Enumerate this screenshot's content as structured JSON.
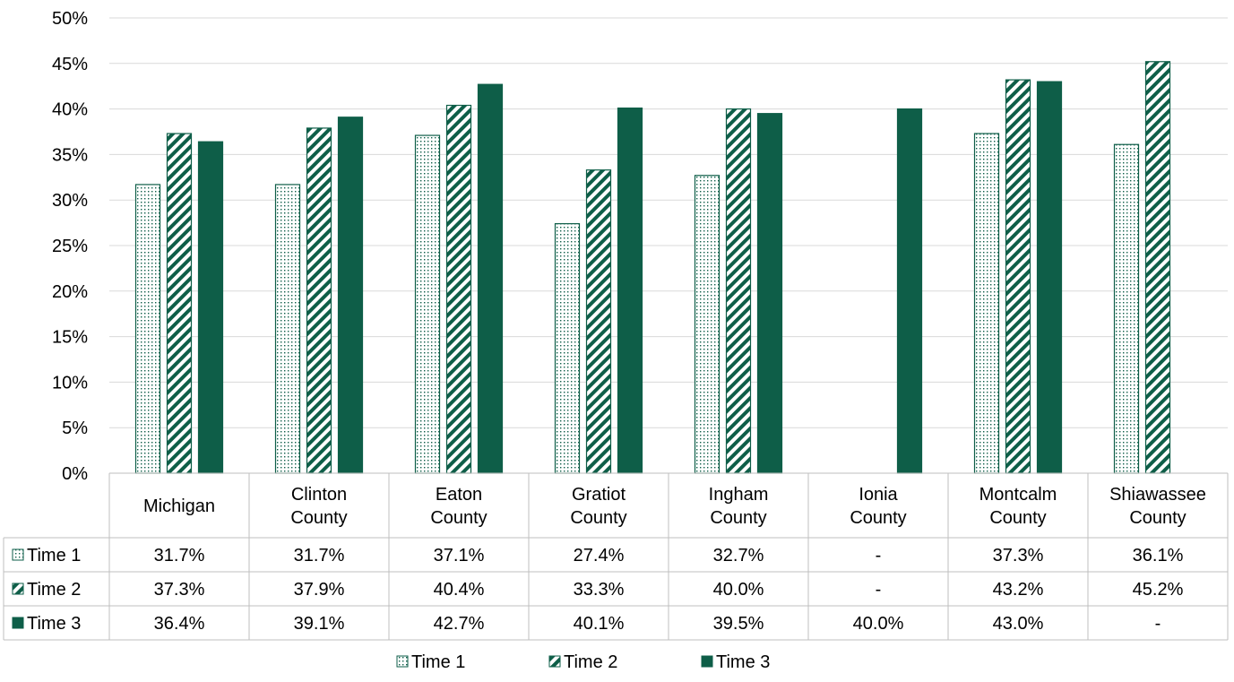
{
  "chart_data": {
    "type": "bar",
    "categories": [
      [
        "Michigan"
      ],
      [
        "Clinton",
        "County"
      ],
      [
        "Eaton",
        "County"
      ],
      [
        "Gratiot",
        "County"
      ],
      [
        "Ingham",
        "County"
      ],
      [
        "Ionia",
        "County"
      ],
      [
        "Montcalm",
        "County"
      ],
      [
        "Shiawassee",
        "County"
      ]
    ],
    "series": [
      {
        "name": "Time 1",
        "pattern": "dots",
        "values": [
          31.7,
          31.7,
          37.1,
          27.4,
          32.7,
          null,
          37.3,
          36.1
        ],
        "table_labels": [
          "31.7%",
          "31.7%",
          "37.1%",
          "27.4%",
          "32.7%",
          "-",
          "37.3%",
          "36.1%"
        ]
      },
      {
        "name": "Time 2",
        "pattern": "stripes",
        "values": [
          37.3,
          37.9,
          40.4,
          33.3,
          40.0,
          null,
          43.2,
          45.2
        ],
        "table_labels": [
          "37.3%",
          "37.9%",
          "40.4%",
          "33.3%",
          "40.0%",
          "-",
          "43.2%",
          "45.2%"
        ]
      },
      {
        "name": "Time 3",
        "pattern": "solid",
        "values": [
          36.4,
          39.1,
          42.7,
          40.1,
          39.5,
          40.0,
          43.0,
          null
        ],
        "table_labels": [
          "36.4%",
          "39.1%",
          "42.7%",
          "40.1%",
          "39.5%",
          "40.0%",
          "43.0%",
          "-"
        ]
      }
    ],
    "y_ticks": [
      "0%",
      "5%",
      "10%",
      "15%",
      "20%",
      "25%",
      "30%",
      "35%",
      "40%",
      "45%",
      "50%"
    ],
    "ylim": [
      0,
      50
    ],
    "grid": true,
    "data_table": true,
    "legend": "bottom-center"
  },
  "colors": {
    "bar": "#0e5e48",
    "grid": "#d9d9d9",
    "table_border": "#bfbfbf"
  }
}
